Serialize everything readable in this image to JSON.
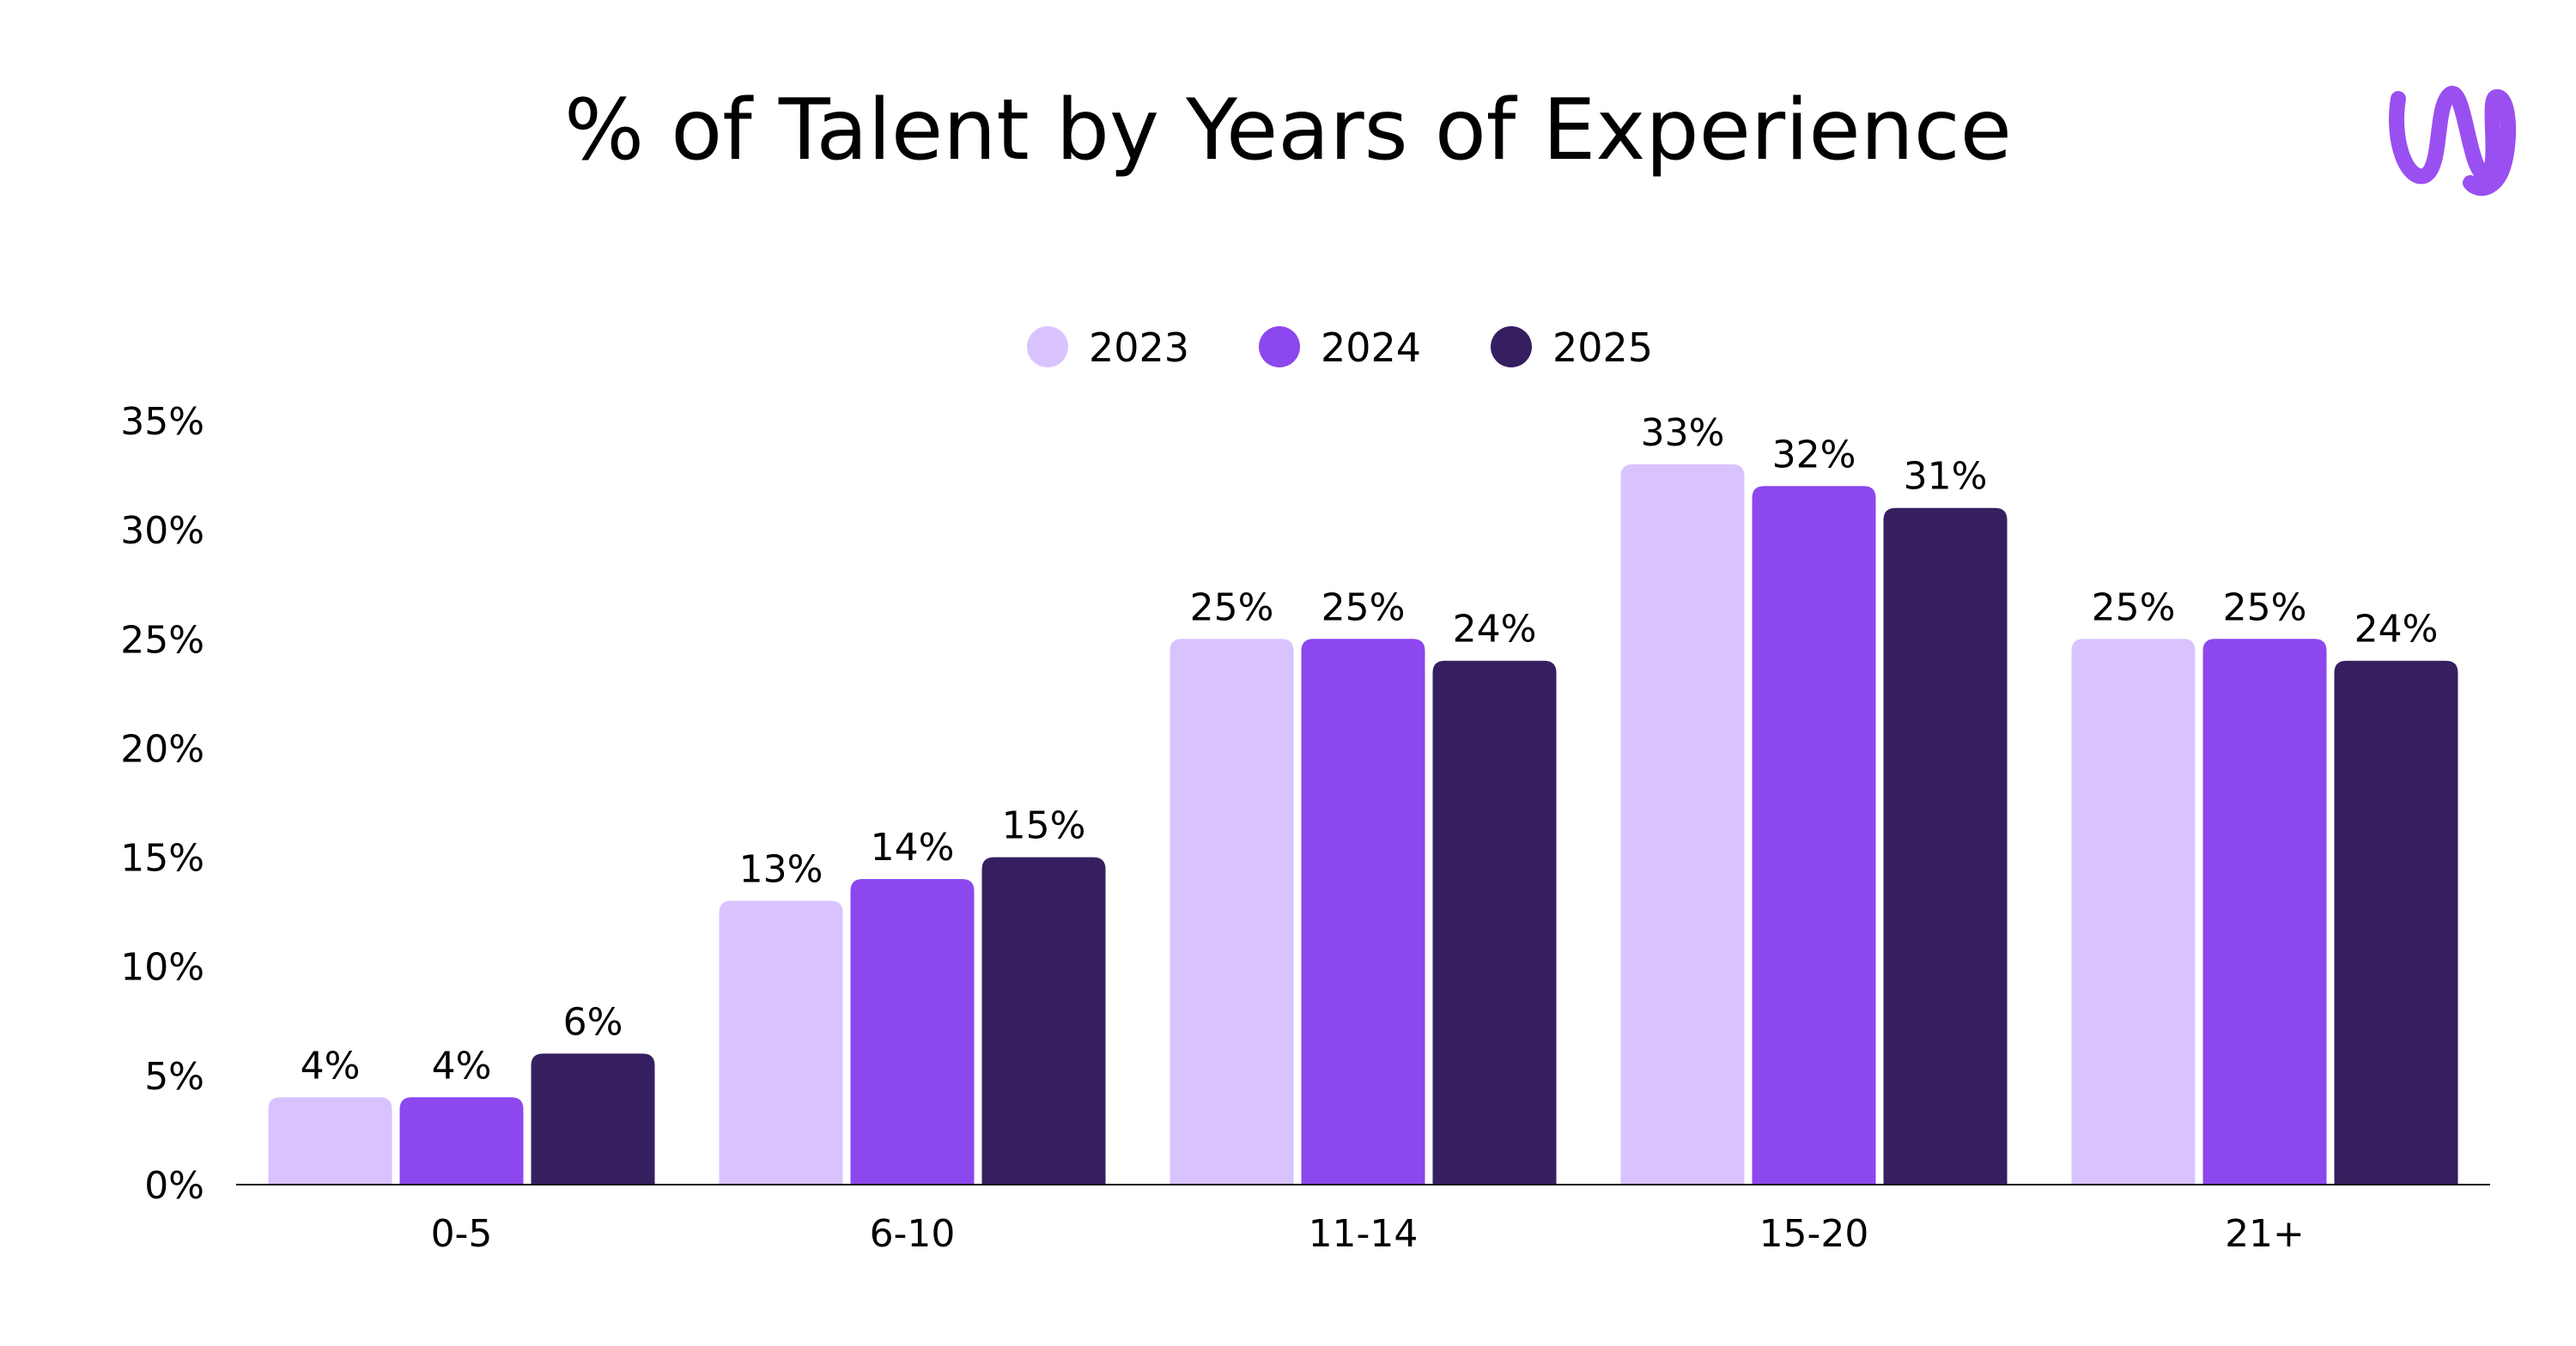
{
  "colors": {
    "2023": "#d9c3ff",
    "2024": "#8c47ee",
    "2025": "#361f60",
    "text": "#000000",
    "axis": "#111111",
    "logo": "#9a4ff0"
  },
  "logo": {
    "icon": "wave-logo-icon"
  },
  "chart_data": {
    "type": "bar",
    "title": "% of Talent by Years of Experience",
    "xlabel": "",
    "ylabel": "",
    "categories": [
      "0-5",
      "6-10",
      "11-14",
      "15-20",
      "21+"
    ],
    "series": [
      {
        "name": "2023",
        "values": [
          4,
          13,
          25,
          33,
          25
        ],
        "labels": [
          "4%",
          "13%",
          "25%",
          "33%",
          "25%"
        ]
      },
      {
        "name": "2024",
        "values": [
          4,
          14,
          25,
          32,
          25
        ],
        "labels": [
          "4%",
          "14%",
          "25%",
          "32%",
          "25%"
        ]
      },
      {
        "name": "2025",
        "values": [
          6,
          15,
          24,
          31,
          24
        ],
        "labels": [
          "6%",
          "15%",
          "24%",
          "31%",
          "24%"
        ]
      }
    ],
    "ylim": [
      0,
      35
    ],
    "yticks": [
      0,
      5,
      10,
      15,
      20,
      25,
      30,
      35
    ],
    "ytick_labels": [
      "0%",
      "5%",
      "10%",
      "15%",
      "20%",
      "25%",
      "30%",
      "35%"
    ],
    "legend_position": "top-center",
    "grid": false
  }
}
